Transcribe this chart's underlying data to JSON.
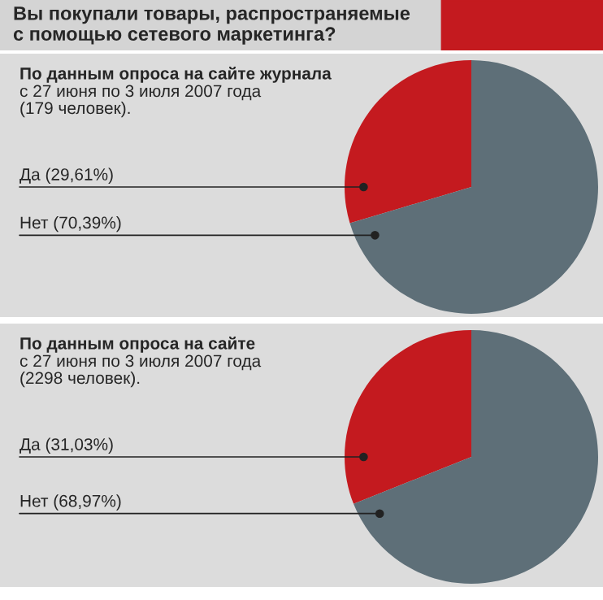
{
  "chart_data": [
    {
      "type": "pie",
      "title": "Вы покупали товары, распространяемые\nс помощью сетевого маркетинга?",
      "subtitle": "По данным опроса на сайте журнала",
      "annotations": [
        "с 27 июня по 3 июля 2007 года\n(179 человек)."
      ],
      "categories": [
        "Да",
        "Нет"
      ],
      "values": [
        29.61,
        70.39
      ],
      "value_labels": [
        "(29,61%)",
        "(70,39%)"
      ],
      "colors": [
        "#c41a1f",
        "#5e6f78"
      ]
    },
    {
      "type": "pie",
      "subtitle": "По данным опроса на сайте",
      "annotations": [
        "с 27 июня по 3 июля 2007 года\n(2298 человек)."
      ],
      "categories": [
        "Да",
        "Нет"
      ],
      "values": [
        31.03,
        68.97
      ],
      "value_labels": [
        "(31,03%)",
        "(68,97%)"
      ],
      "colors": [
        "#c41a1f",
        "#5e6f78"
      ]
    }
  ]
}
